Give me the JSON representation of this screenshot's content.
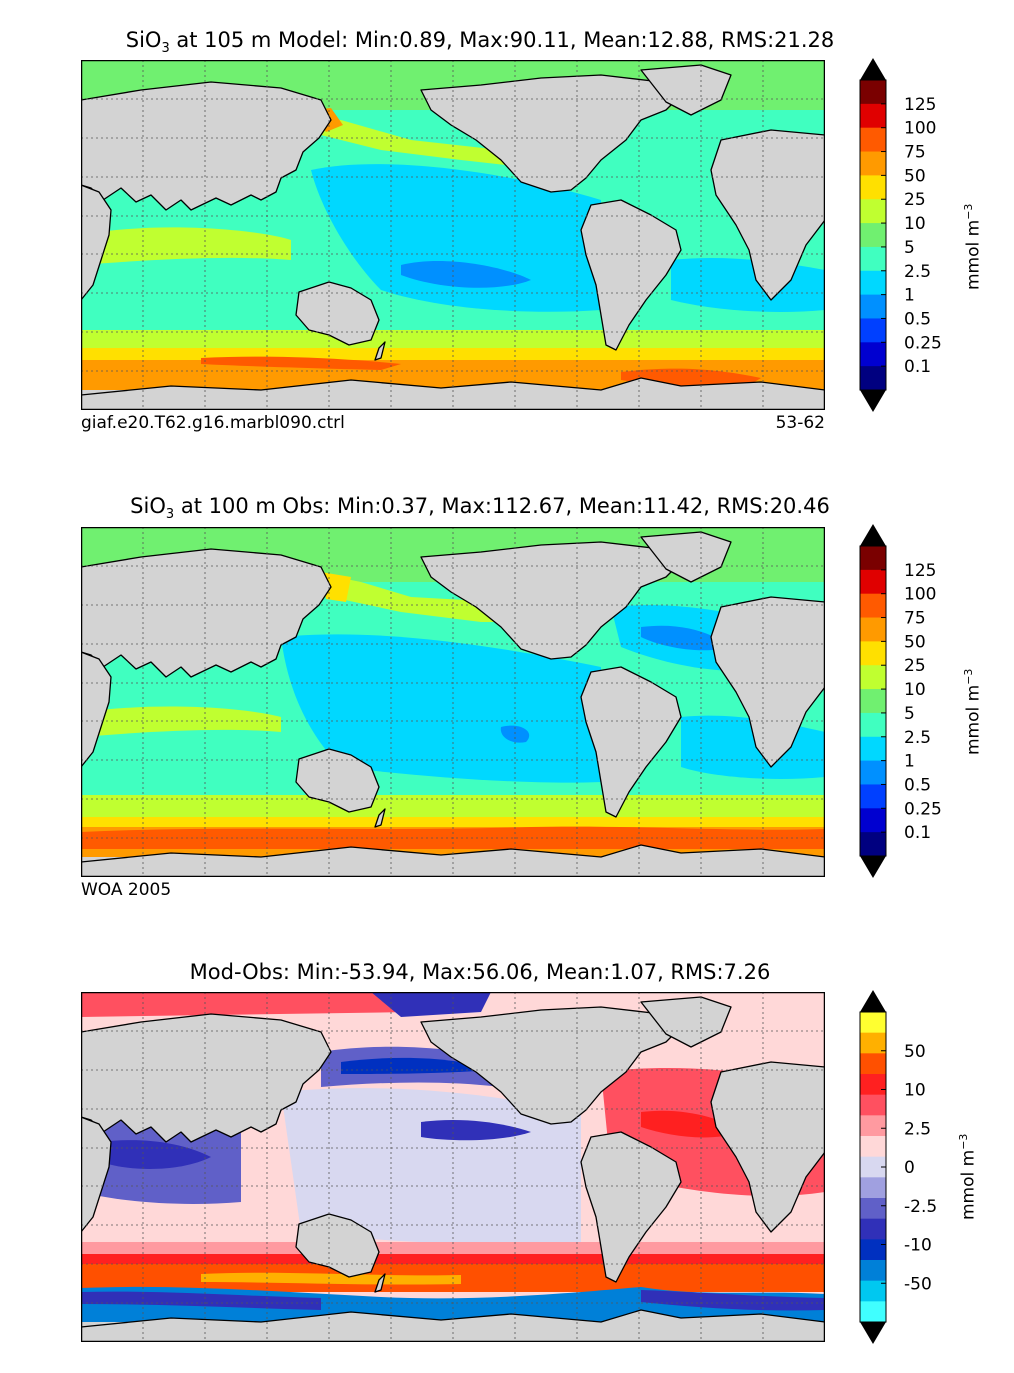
{
  "panels": [
    {
      "title_prefix": "SiO",
      "title_sub": "3",
      "title_rest": " at 105 m Model: Min:0.89, Max:90.11, Mean:12.88, RMS:21.28",
      "footer_left": "giaf.e20.T62.g16.marbl090.ctrl",
      "footer_right": "53-62",
      "colorbar": {
        "ticks": [
          "125",
          "100",
          "75",
          "50",
          "25",
          "10",
          "5",
          "2.5",
          "1",
          "0.5",
          "0.25",
          "0.1"
        ],
        "colors": [
          "#7a0000",
          "#e00000",
          "#ff5a00",
          "#ff9a00",
          "#ffe000",
          "#c0ff30",
          "#70f070",
          "#40ffc0",
          "#00d8ff",
          "#0090ff",
          "#0040ff",
          "#0000d0",
          "#000080"
        ],
        "unit": "mmol m",
        "unit_sup": "−3"
      }
    },
    {
      "title_prefix": "SiO",
      "title_sub": "3",
      "title_rest": " at 100 m Obs: Min:0.37, Max:112.67, Mean:11.42, RMS:20.46",
      "footer_left": "WOA 2005",
      "footer_right": "",
      "colorbar": {
        "ticks": [
          "125",
          "100",
          "75",
          "50",
          "25",
          "10",
          "5",
          "2.5",
          "1",
          "0.5",
          "0.25",
          "0.1"
        ],
        "colors": [
          "#7a0000",
          "#e00000",
          "#ff5a00",
          "#ff9a00",
          "#ffe000",
          "#c0ff30",
          "#70f070",
          "#40ffc0",
          "#00d8ff",
          "#0090ff",
          "#0040ff",
          "#0000d0",
          "#000080"
        ],
        "unit": "mmol m",
        "unit_sup": "−3"
      }
    },
    {
      "title_prefix": "",
      "title_sub": "",
      "title_rest": "Mod-Obs: Min:-53.94, Max:56.06, Mean:1.07, RMS:7.26",
      "footer_left": "",
      "footer_right": "",
      "colorbar": {
        "ticks": [
          "50",
          "10",
          "2.5",
          "0",
          "-2.5",
          "-10",
          "-50"
        ],
        "colors": [
          "#ffff30",
          "#ffb000",
          "#ff5000",
          "#ff2020",
          "#ff5060",
          "#ff9aa0",
          "#ffd8d8",
          "#d8d8f0",
          "#a0a0e0",
          "#6060c8",
          "#3030b8",
          "#0030c0",
          "#0080d8",
          "#00c8f0",
          "#40ffff"
        ],
        "unit": "mmol m",
        "unit_sup": "−3"
      }
    }
  ],
  "chart_data": [
    {
      "type": "heatmap",
      "title": "SiO3 at 105 m Model: Min:0.89, Max:90.11, Mean:12.88, RMS:21.28",
      "stats": {
        "min": 0.89,
        "max": 90.11,
        "mean": 12.88,
        "rms": 21.28
      },
      "depth_m": 105,
      "source": "giaf.e20.T62.g16.marbl090.ctrl",
      "years": "53-62",
      "levels": [
        0.1,
        0.25,
        0.5,
        1,
        2.5,
        5,
        10,
        25,
        50,
        75,
        100,
        125
      ],
      "colorbar_extend": "both",
      "unit": "mmol m^-3"
    },
    {
      "type": "heatmap",
      "title": "SiO3 at 100 m Obs: Min:0.37, Max:112.67, Mean:11.42, RMS:20.46",
      "stats": {
        "min": 0.37,
        "max": 112.67,
        "mean": 11.42,
        "rms": 20.46
      },
      "depth_m": 100,
      "source": "WOA 2005",
      "levels": [
        0.1,
        0.25,
        0.5,
        1,
        2.5,
        5,
        10,
        25,
        50,
        75,
        100,
        125
      ],
      "colorbar_extend": "both",
      "unit": "mmol m^-3"
    },
    {
      "type": "heatmap",
      "title": "Mod-Obs: Min:-53.94, Max:56.06, Mean:1.07, RMS:7.26",
      "stats": {
        "min": -53.94,
        "max": 56.06,
        "mean": 1.07,
        "rms": 7.26
      },
      "levels": [
        -50,
        -10,
        -2.5,
        0,
        2.5,
        10,
        50
      ],
      "colorbar_extend": "both",
      "unit": "mmol m^-3"
    }
  ]
}
